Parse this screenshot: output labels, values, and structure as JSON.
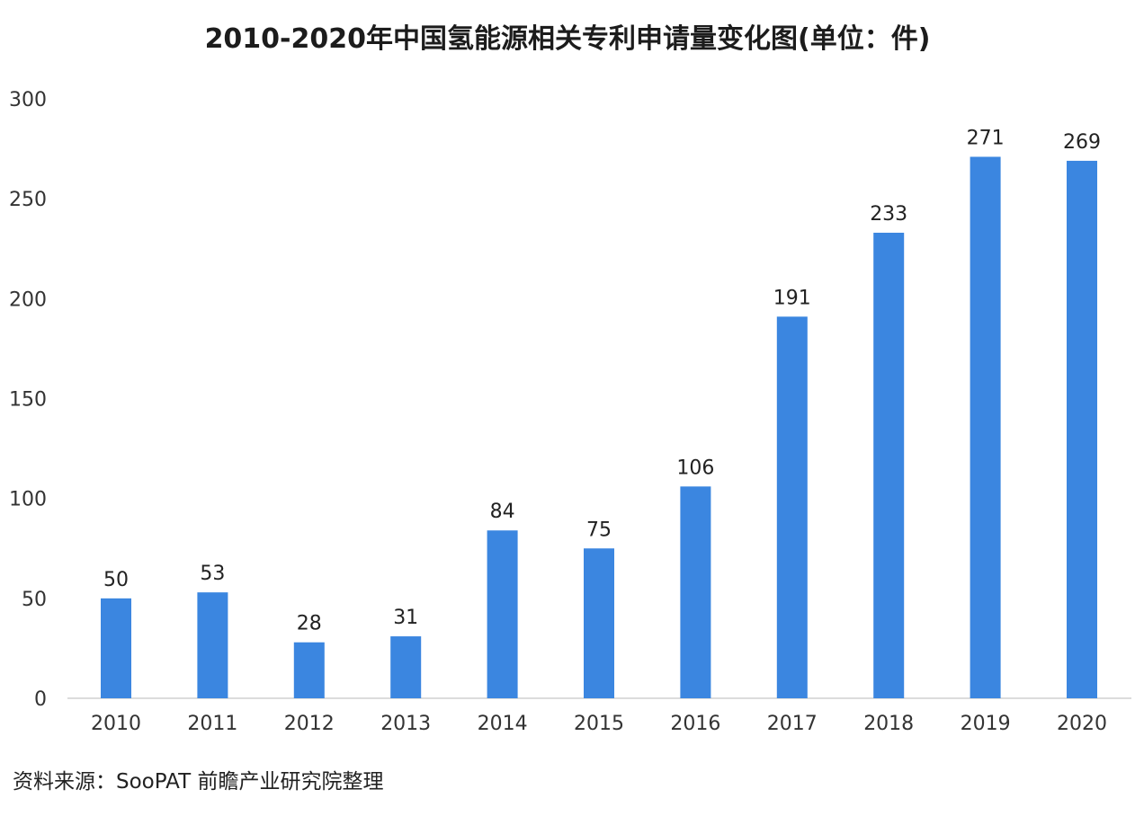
{
  "title": "2010-2020年中国氢能源相关专利申请量变化图(单位：件)",
  "source": "资料来源：SooPAT 前瞻产业研究院整理",
  "chart_data": {
    "type": "bar",
    "title": "2010-2020年中国氢能源相关专利申请量变化图(单位：件)",
    "categories": [
      "2010",
      "2011",
      "2012",
      "2013",
      "2014",
      "2015",
      "2016",
      "2017",
      "2018",
      "2019",
      "2020"
    ],
    "values": [
      50,
      53,
      28,
      31,
      84,
      75,
      106,
      191,
      233,
      271,
      269
    ],
    "ylim": [
      0,
      300
    ],
    "yticks": [
      0,
      50,
      100,
      150,
      200,
      250,
      300
    ],
    "grid": false,
    "legend": "none",
    "bar_color": "#3b86e0"
  }
}
